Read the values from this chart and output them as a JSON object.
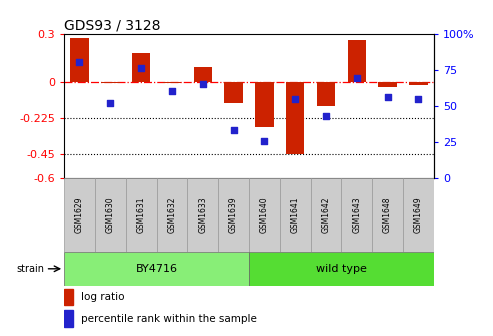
{
  "title": "GDS93 / 3128",
  "samples": [
    "GSM1629",
    "GSM1630",
    "GSM1631",
    "GSM1632",
    "GSM1633",
    "GSM1639",
    "GSM1640",
    "GSM1641",
    "GSM1642",
    "GSM1643",
    "GSM1648",
    "GSM1649"
  ],
  "log_ratio": [
    0.27,
    -0.01,
    0.18,
    -0.005,
    0.09,
    -0.13,
    -0.28,
    -0.45,
    -0.15,
    0.26,
    -0.03,
    -0.02
  ],
  "percentile_rank": [
    80,
    52,
    76,
    60,
    65,
    33,
    26,
    55,
    43,
    69,
    56,
    55
  ],
  "ylim_left": [
    -0.6,
    0.3
  ],
  "ylim_right": [
    0,
    100
  ],
  "left_ticks": [
    0.3,
    0,
    -0.225,
    -0.45,
    -0.6
  ],
  "right_ticks": [
    100,
    75,
    50,
    25,
    0
  ],
  "hline_red": 0.0,
  "hlines_black": [
    -0.225,
    -0.45
  ],
  "bar_color": "#cc2200",
  "dot_color": "#2222cc",
  "group1_label": "BY4716",
  "group1_indices": [
    0,
    1,
    2,
    3,
    4,
    5
  ],
  "group1_color": "#88ee77",
  "group2_label": "wild type",
  "group2_indices": [
    6,
    7,
    8,
    9,
    10,
    11
  ],
  "group2_color": "#55dd33",
  "strain_label": "strain",
  "legend_log_ratio": "log ratio",
  "legend_percentile": "percentile rank within the sample",
  "sample_box_color": "#cccccc",
  "title_fontsize": 10,
  "axis_fontsize": 8,
  "label_fontsize": 7
}
